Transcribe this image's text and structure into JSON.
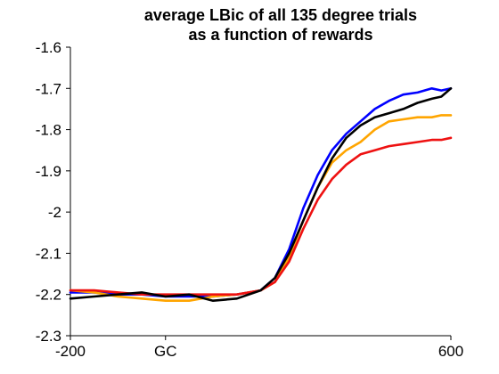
{
  "chart_data": {
    "type": "line",
    "title_line1": "average LBic of all 135 degree trials",
    "title_line2": "as a function of rewards",
    "xlabel": "",
    "ylabel": "",
    "xlim": [
      -200,
      600
    ],
    "ylim": [
      -2.3,
      -1.6
    ],
    "x_ticks": [
      {
        "value": -200,
        "label": "-200"
      },
      {
        "value": 0,
        "label": "GC"
      },
      {
        "value": 600,
        "label": "600"
      }
    ],
    "y_ticks": [
      {
        "value": -1.6,
        "label": "-1.6"
      },
      {
        "value": -1.7,
        "label": "-1.7"
      },
      {
        "value": -1.8,
        "label": "-1.8"
      },
      {
        "value": -1.9,
        "label": "-1.9"
      },
      {
        "value": -2.0,
        "label": "-2"
      },
      {
        "value": -2.1,
        "label": "-2.1"
      },
      {
        "value": -2.2,
        "label": "-2.2"
      },
      {
        "value": -2.3,
        "label": "-2.3"
      }
    ],
    "grid": false,
    "legend": "none",
    "series": [
      {
        "color": "#0000ff",
        "x": [
          -200,
          -150,
          -100,
          -50,
          0,
          50,
          100,
          150,
          200,
          230,
          260,
          290,
          320,
          350,
          380,
          410,
          440,
          470,
          500,
          530,
          560,
          580,
          600
        ],
        "y": [
          -2.195,
          -2.195,
          -2.2,
          -2.2,
          -2.205,
          -2.205,
          -2.205,
          -2.2,
          -2.19,
          -2.16,
          -2.09,
          -1.99,
          -1.91,
          -1.85,
          -1.81,
          -1.78,
          -1.75,
          -1.73,
          -1.715,
          -1.71,
          -1.7,
          -1.705,
          -1.7
        ]
      },
      {
        "color": "#ffa500",
        "x": [
          -200,
          -150,
          -100,
          -50,
          0,
          50,
          100,
          150,
          200,
          230,
          260,
          290,
          320,
          350,
          380,
          410,
          440,
          470,
          500,
          530,
          560,
          580,
          600
        ],
        "y": [
          -2.19,
          -2.195,
          -2.205,
          -2.21,
          -2.215,
          -2.215,
          -2.205,
          -2.2,
          -2.19,
          -2.17,
          -2.11,
          -2.02,
          -1.94,
          -1.88,
          -1.85,
          -1.83,
          -1.8,
          -1.78,
          -1.775,
          -1.77,
          -1.77,
          -1.765,
          -1.765
        ]
      },
      {
        "color": "#ee1111",
        "x": [
          -200,
          -150,
          -100,
          -50,
          0,
          50,
          100,
          150,
          200,
          230,
          260,
          290,
          320,
          350,
          380,
          410,
          440,
          470,
          500,
          530,
          560,
          580,
          600
        ],
        "y": [
          -2.19,
          -2.19,
          -2.195,
          -2.2,
          -2.2,
          -2.2,
          -2.2,
          -2.2,
          -2.19,
          -2.17,
          -2.12,
          -2.04,
          -1.97,
          -1.92,
          -1.885,
          -1.86,
          -1.85,
          -1.84,
          -1.835,
          -1.83,
          -1.825,
          -1.825,
          -1.82
        ]
      },
      {
        "color": "#000000",
        "x": [
          -200,
          -150,
          -100,
          -50,
          0,
          50,
          100,
          150,
          200,
          230,
          260,
          290,
          320,
          350,
          380,
          410,
          440,
          470,
          500,
          530,
          560,
          580,
          600
        ],
        "y": [
          -2.21,
          -2.205,
          -2.2,
          -2.195,
          -2.205,
          -2.2,
          -2.215,
          -2.21,
          -2.19,
          -2.16,
          -2.1,
          -2.02,
          -1.94,
          -1.87,
          -1.82,
          -1.79,
          -1.77,
          -1.76,
          -1.75,
          -1.735,
          -1.725,
          -1.72,
          -1.7
        ]
      }
    ]
  }
}
